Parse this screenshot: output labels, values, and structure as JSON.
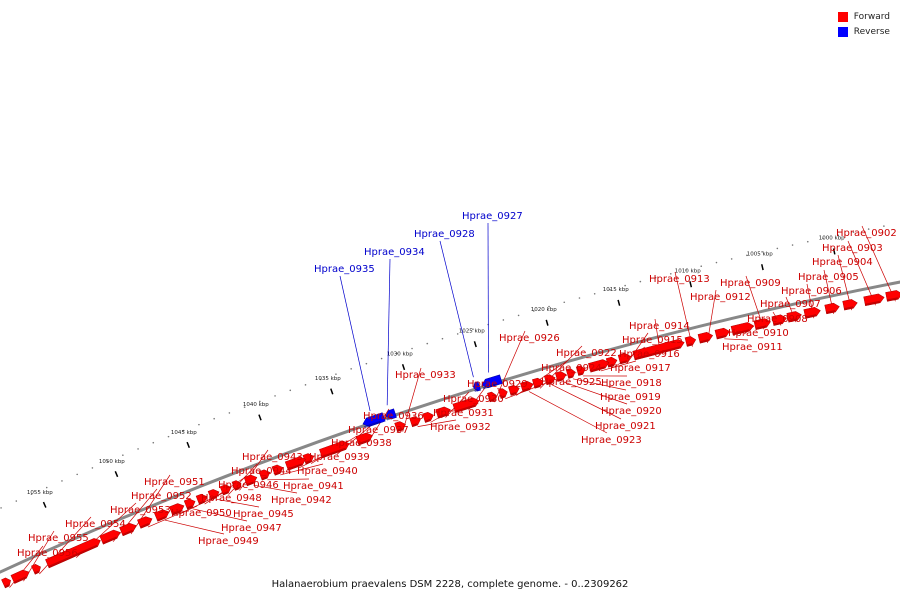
{
  "colors": {
    "forward": "#ff0000",
    "reverse": "#0000ff",
    "backbone": "#888888",
    "forward_label": "#cc0000",
    "reverse_label": "#0000cc"
  },
  "legend": [
    {
      "label": "Forward",
      "color": "#ff0000"
    },
    {
      "label": "Reverse",
      "color": "#0000ff"
    }
  ],
  "caption": "Halanaerobium praevalens DSM 2228, complete genome. - 0..2309262",
  "ticks": [
    "1000 kbp",
    "1005 kbp",
    "1010 kbp",
    "1015 kbp",
    "1020 kbp",
    "1025 kbp",
    "1030 kbp",
    "1035 kbp",
    "1040 kbp",
    "1045 kbp",
    "1050 kbp",
    "1055 kbp"
  ],
  "genes": [
    {
      "label": "Hprae_0902",
      "strand": "forward"
    },
    {
      "label": "Hprae_0903",
      "strand": "forward"
    },
    {
      "label": "Hprae_0904",
      "strand": "forward"
    },
    {
      "label": "Hprae_0905",
      "strand": "forward"
    },
    {
      "label": "Hprae_0906",
      "strand": "forward"
    },
    {
      "label": "Hprae_0907",
      "strand": "forward"
    },
    {
      "label": "Hprae_0908",
      "strand": "forward"
    },
    {
      "label": "Hprae_0909",
      "strand": "forward"
    },
    {
      "label": "Hprae_0910",
      "strand": "forward"
    },
    {
      "label": "Hprae_0911",
      "strand": "forward"
    },
    {
      "label": "Hprae_0912",
      "strand": "forward"
    },
    {
      "label": "Hprae_0913",
      "strand": "forward"
    },
    {
      "label": "Hprae_0914",
      "strand": "forward"
    },
    {
      "label": "Hprae_0915",
      "strand": "forward"
    },
    {
      "label": "Hprae_0916",
      "strand": "forward"
    },
    {
      "label": "Hprae_0917",
      "strand": "forward"
    },
    {
      "label": "Hprae_0918",
      "strand": "forward"
    },
    {
      "label": "Hprae_0919",
      "strand": "forward"
    },
    {
      "label": "Hprae_0920",
      "strand": "forward"
    },
    {
      "label": "Hprae_0921",
      "strand": "forward"
    },
    {
      "label": "Hprae_0922",
      "strand": "forward"
    },
    {
      "label": "Hprae_0923",
      "strand": "forward"
    },
    {
      "label": "Hprae_0924",
      "strand": "forward"
    },
    {
      "label": "Hprae_0925",
      "strand": "forward"
    },
    {
      "label": "Hprae_0926",
      "strand": "forward"
    },
    {
      "label": "Hprae_0927",
      "strand": "reverse"
    },
    {
      "label": "Hprae_0928",
      "strand": "reverse"
    },
    {
      "label": "Hprae_0929",
      "strand": "forward"
    },
    {
      "label": "Hprae_0930",
      "strand": "forward"
    },
    {
      "label": "Hprae_0931",
      "strand": "forward"
    },
    {
      "label": "Hprae_0932",
      "strand": "forward"
    },
    {
      "label": "Hprae_0933",
      "strand": "forward"
    },
    {
      "label": "Hprae_0934",
      "strand": "reverse"
    },
    {
      "label": "Hprae_0935",
      "strand": "reverse"
    },
    {
      "label": "Hprae_0936",
      "strand": "forward"
    },
    {
      "label": "Hprae_0937",
      "strand": "forward"
    },
    {
      "label": "Hprae_0938",
      "strand": "forward"
    },
    {
      "label": "Hprae_0939",
      "strand": "forward"
    },
    {
      "label": "Hprae_0940",
      "strand": "forward"
    },
    {
      "label": "Hprae_0941",
      "strand": "forward"
    },
    {
      "label": "Hprae_0942",
      "strand": "forward"
    },
    {
      "label": "Hprae_0943",
      "strand": "forward"
    },
    {
      "label": "Hprae_0944",
      "strand": "forward"
    },
    {
      "label": "Hprae_0945",
      "strand": "forward"
    },
    {
      "label": "Hprae_0946",
      "strand": "forward"
    },
    {
      "label": "Hprae_0947",
      "strand": "forward"
    },
    {
      "label": "Hprae_0948",
      "strand": "forward"
    },
    {
      "label": "Hprae_0949",
      "strand": "forward"
    },
    {
      "label": "Hprae_0950",
      "strand": "forward"
    },
    {
      "label": "Hprae_0951",
      "strand": "forward"
    },
    {
      "label": "Hprae_0952",
      "strand": "forward"
    },
    {
      "label": "Hprae_0953",
      "strand": "forward"
    },
    {
      "label": "Hprae_0954",
      "strand": "forward"
    },
    {
      "label": "Hprae_0955",
      "strand": "forward"
    },
    {
      "label": "Hprae_0956",
      "strand": "forward"
    }
  ]
}
